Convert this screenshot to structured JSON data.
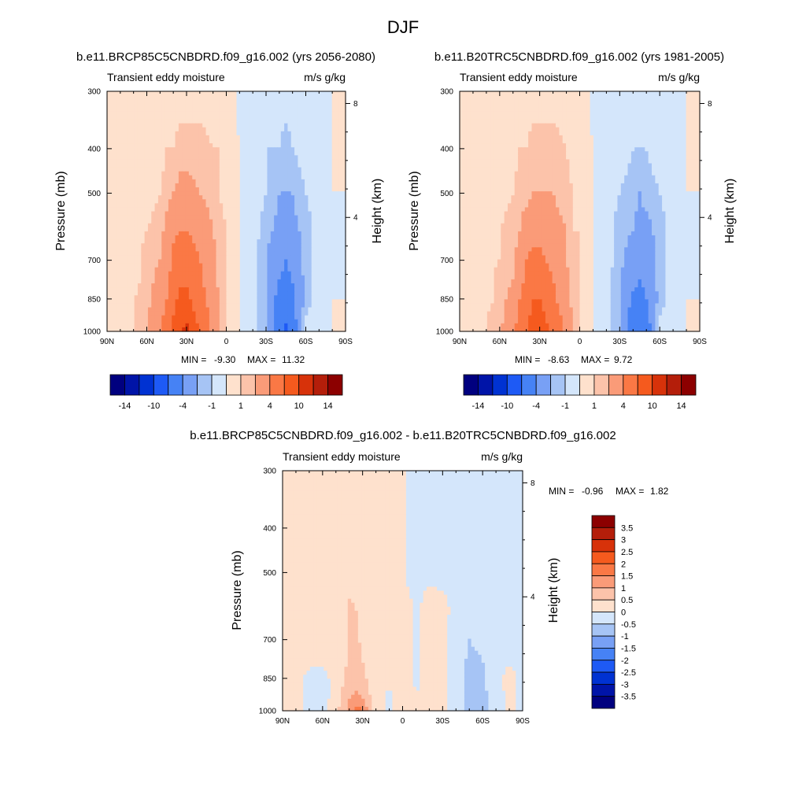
{
  "figure_title": "DJF",
  "chart_data": [
    {
      "type": "heatmap",
      "panel": "future",
      "title": "b.e11.BRCP85C5CNBDRD.f09_g16.002 (yrs 2056-2080)",
      "subtitle_left": "Transient eddy moisture",
      "subtitle_right": "m/s g/kg",
      "ylabel": "Pressure (mb)",
      "ylabel_right": "Height (km)",
      "x_ticks": [
        "90N",
        "60N",
        "30N",
        "0",
        "30S",
        "60S",
        "90S"
      ],
      "y_ticks": [
        "300",
        "400",
        "500",
        "700",
        "850",
        "1000"
      ],
      "y_ticks_right": [
        "8",
        "4"
      ],
      "stats": {
        "min_label": "MIN =",
        "min": "-9.30",
        "max_label": "MAX =",
        "max": "11.32"
      },
      "levels": [
        -14,
        -12,
        -10,
        -7,
        -4,
        -2,
        -1,
        0,
        1,
        2,
        4,
        7,
        10,
        12,
        14
      ],
      "level_labels": [
        "-14",
        "-10",
        "-4",
        "-1",
        "1",
        "4",
        "10",
        "14"
      ],
      "colorbar_orientation": "horizontal",
      "field": {
        "lats": [
          -90,
          -80,
          -70,
          -60,
          -50,
          -45,
          -40,
          -30,
          -20,
          -10,
          -5,
          0,
          5,
          10,
          20,
          30,
          35,
          40,
          45,
          50,
          60,
          70,
          80,
          90
        ],
        "pressures": [
          1000,
          925,
          850,
          775,
          700,
          600,
          500,
          400,
          300
        ],
        "values": [
          [
            0,
            0,
            0,
            -0.5,
            -6,
            -7.5,
            -6,
            -2,
            -0.5,
            0,
            0.5,
            1,
            2,
            3,
            7,
            11,
            10,
            8,
            6,
            4,
            2,
            1,
            0,
            0
          ],
          [
            0,
            0,
            -0.5,
            -1,
            -5,
            -6.5,
            -5.5,
            -2,
            -0.5,
            0,
            0.5,
            1,
            2,
            3,
            6,
            9,
            9,
            7,
            5,
            3,
            2,
            1,
            0,
            0
          ],
          [
            0,
            0,
            -0.5,
            -1.5,
            -4.5,
            -5.5,
            -5,
            -2,
            -0.5,
            0,
            0.5,
            1,
            2,
            3,
            5,
            8,
            8,
            6,
            4,
            3,
            1.5,
            1,
            0,
            0
          ],
          [
            0,
            -0.5,
            -0.5,
            -1.5,
            -4,
            -4.5,
            -4,
            -2,
            -0.5,
            0,
            0.5,
            1,
            1.5,
            2.5,
            4.5,
            6.5,
            6.5,
            5,
            3.5,
            2.5,
            1.5,
            0.5,
            0,
            0
          ],
          [
            0,
            -0.5,
            -0.5,
            -1.5,
            -3.5,
            -4,
            -3.5,
            -2,
            -0.5,
            0,
            0.5,
            1,
            1.5,
            2.5,
            4,
            5.5,
            5.5,
            4.5,
            3,
            2,
            1.5,
            0.5,
            0,
            0
          ],
          [
            0,
            -0.5,
            -0.5,
            -1.5,
            -2.5,
            -3,
            -2.5,
            -1.5,
            -0.5,
            0,
            0.5,
            1,
            1.5,
            2,
            3,
            4,
            4,
            3.5,
            2.5,
            1.5,
            1,
            0.5,
            0,
            0
          ],
          [
            0,
            0,
            -0.5,
            -1,
            -2,
            -2,
            -2,
            -1,
            -0.5,
            0,
            0.5,
            0.5,
            1,
            1.5,
            2,
            2.5,
            2.5,
            2,
            1.5,
            1,
            0.5,
            0.5,
            0,
            0
          ],
          [
            0,
            0,
            -0.5,
            -0.5,
            -1,
            -1.5,
            -1,
            -1,
            -0.5,
            0,
            0.5,
            0.5,
            1,
            1,
            1.5,
            1.5,
            1.5,
            1,
            1,
            0.5,
            0.5,
            0,
            0,
            0
          ],
          [
            0,
            0,
            0,
            -0.5,
            -0.5,
            -0.5,
            -0.5,
            -0.5,
            -0.5,
            -0.5,
            0.5,
            0.5,
            0.5,
            0.5,
            0.5,
            0.5,
            0.5,
            0.5,
            0.5,
            0.5,
            0.5,
            0.5,
            0,
            0
          ]
        ]
      }
    },
    {
      "type": "heatmap",
      "panel": "present",
      "title": "b.e11.B20TRC5CNBDRD.f09_g16.002 (yrs 1981-2005)",
      "subtitle_left": "Transient eddy moisture",
      "subtitle_right": "m/s g/kg",
      "ylabel": "Pressure (mb)",
      "ylabel_right": "Height (km)",
      "x_ticks": [
        "90N",
        "60N",
        "30N",
        "0",
        "30S",
        "60S",
        "90S"
      ],
      "y_ticks": [
        "300",
        "400",
        "500",
        "700",
        "850",
        "1000"
      ],
      "y_ticks_right": [
        "8",
        "4"
      ],
      "stats": {
        "min_label": "MIN =",
        "min": "-8.63",
        "max_label": "MAX =",
        "max": "9.72"
      },
      "levels": [
        -14,
        -12,
        -10,
        -7,
        -4,
        -2,
        -1,
        0,
        1,
        2,
        4,
        7,
        10,
        12,
        14
      ],
      "level_labels": [
        "-14",
        "-10",
        "-4",
        "-1",
        "1",
        "4",
        "10",
        "14"
      ],
      "colorbar_orientation": "horizontal",
      "field": {
        "lats": [
          -90,
          -80,
          -70,
          -60,
          -50,
          -45,
          -40,
          -30,
          -20,
          -10,
          -5,
          0,
          5,
          10,
          20,
          30,
          35,
          40,
          45,
          50,
          60,
          70,
          80,
          90
        ],
        "pressures": [
          1000,
          925,
          850,
          775,
          700,
          600,
          500,
          400,
          300
        ],
        "values": [
          [
            0,
            0,
            0,
            -0.5,
            -5.5,
            -7,
            -5.5,
            -2,
            -0.5,
            0,
            0.5,
            1,
            2,
            3,
            6,
            9.5,
            9,
            7,
            5,
            3.5,
            2,
            1,
            0,
            0
          ],
          [
            0,
            0,
            -0.5,
            -1,
            -5,
            -6,
            -5,
            -2,
            -0.5,
            0,
            0.5,
            1,
            2,
            3,
            5.5,
            8,
            8,
            6,
            4.5,
            3,
            1.5,
            1,
            0,
            0
          ],
          [
            0,
            0,
            -0.5,
            -1.5,
            -4,
            -5,
            -4.5,
            -2,
            -0.5,
            0,
            0.5,
            1,
            1.5,
            2.5,
            4.5,
            7,
            7,
            5.5,
            4,
            2.5,
            1.5,
            0.5,
            0,
            0
          ],
          [
            0,
            -0.5,
            -0.5,
            -1.5,
            -3.5,
            -4,
            -3.5,
            -2,
            -0.5,
            0,
            0.5,
            1,
            1.5,
            2.5,
            4,
            5.5,
            5.5,
            4.5,
            3,
            2,
            1.5,
            0.5,
            0,
            0
          ],
          [
            0,
            -0.5,
            -0.5,
            -1.5,
            -3,
            -3.5,
            -3,
            -1.5,
            -0.5,
            0,
            0.5,
            1,
            1.5,
            2,
            3.5,
            4.5,
            4.5,
            4,
            2.5,
            2,
            1,
            0.5,
            0,
            0
          ],
          [
            0,
            -0.5,
            -0.5,
            -1.5,
            -2.5,
            -2.5,
            -2,
            -1.5,
            -0.5,
            0,
            0.5,
            1,
            1,
            2,
            2.5,
            3.5,
            3.5,
            3,
            2,
            1.5,
            1,
            0.5,
            0,
            0
          ],
          [
            0,
            0,
            -0.5,
            -1,
            -1.5,
            -2,
            -1.5,
            -1,
            -0.5,
            0,
            0.5,
            0.5,
            1,
            1.5,
            2,
            2,
            2,
            1.5,
            1.5,
            1,
            0.5,
            0.5,
            0,
            0
          ],
          [
            0,
            0,
            -0.5,
            -0.5,
            -1,
            -1,
            -1,
            -0.5,
            -0.5,
            0,
            0.5,
            0.5,
            0.5,
            1,
            1.5,
            1.5,
            1.5,
            1,
            1,
            0.5,
            0.5,
            0,
            0,
            0
          ],
          [
            0,
            0,
            0,
            -0.5,
            -0.5,
            -0.5,
            -0.5,
            -0.5,
            -0.5,
            -0.5,
            0.5,
            0.5,
            0.5,
            0.5,
            0.5,
            0.5,
            0.5,
            0.5,
            0.5,
            0.5,
            0.5,
            0.5,
            0,
            0
          ]
        ]
      }
    },
    {
      "type": "heatmap",
      "panel": "difference",
      "title": "b.e11.BRCP85C5CNBDRD.f09_g16.002 - b.e11.B20TRC5CNBDRD.f09_g16.002",
      "subtitle_left": "Transient eddy moisture",
      "subtitle_right": "m/s g/kg",
      "ylabel": "Pressure (mb)",
      "ylabel_right": "Height (km)",
      "x_ticks": [
        "90N",
        "60N",
        "30N",
        "0",
        "30S",
        "60S",
        "90S"
      ],
      "y_ticks": [
        "300",
        "400",
        "500",
        "700",
        "850",
        "1000"
      ],
      "y_ticks_right": [
        "8",
        "4"
      ],
      "stats": {
        "min_label": "MIN =",
        "min": "-0.96",
        "max_label": "MAX =",
        "max": "1.82"
      },
      "levels": [
        -3.5,
        -3,
        -2.5,
        -2,
        -1.5,
        -1,
        -0.5,
        0,
        0.5,
        1,
        1.5,
        2,
        2.5,
        3,
        3.5
      ],
      "level_labels": [
        "3.5",
        "3",
        "2.5",
        "2",
        "1.5",
        "1",
        "0.5",
        "0",
        "-0.5",
        "-1",
        "-1.5",
        "-2",
        "-2.5",
        "-3",
        "-3.5"
      ],
      "colorbar_orientation": "vertical",
      "field": {
        "lats": [
          -90,
          -80,
          -70,
          -60,
          -50,
          -45,
          -40,
          -30,
          -20,
          -10,
          -5,
          0,
          5,
          10,
          20,
          30,
          35,
          40,
          45,
          50,
          60,
          70,
          80,
          90
        ],
        "pressures": [
          1000,
          925,
          850,
          775,
          700,
          600,
          500,
          400,
          300
        ],
        "values": [
          [
            -0.2,
            0.2,
            -0.3,
            -0.6,
            -0.7,
            -0.5,
            -0.3,
            0.1,
            0.2,
            0,
            0.2,
            0.1,
            0.1,
            -0.1,
            0.2,
            1.5,
            1.7,
            1.2,
            0.8,
            0.3,
            -0.2,
            -0.1,
            0.1,
            0.1
          ],
          [
            -0.2,
            0.2,
            -0.3,
            -0.6,
            -0.7,
            -0.5,
            -0.3,
            0.1,
            0.2,
            0,
            0.2,
            0.1,
            0.1,
            -0.1,
            0.2,
            0.9,
            1.1,
            0.9,
            0.6,
            0.2,
            -0.2,
            -0.1,
            0.1,
            0.1
          ],
          [
            -0.2,
            0.2,
            -0.2,
            -0.6,
            -0.6,
            -0.4,
            -0.2,
            0.1,
            0.2,
            -0.1,
            0.2,
            0.1,
            0.1,
            0.1,
            0.2,
            0.6,
            0.8,
            0.7,
            0.4,
            0.2,
            -0.2,
            -0.1,
            0.1,
            0.1
          ],
          [
            -0.1,
            -0.1,
            -0.2,
            -0.5,
            -0.6,
            -0.4,
            -0.2,
            0.1,
            0.2,
            -0.1,
            0.1,
            0.1,
            0.1,
            0.1,
            0.2,
            0.5,
            0.7,
            0.6,
            0.3,
            0.2,
            0.1,
            0.1,
            0.1,
            0.1
          ],
          [
            -0.1,
            -0.1,
            -0.2,
            -0.4,
            -0.5,
            -0.3,
            -0.2,
            0.1,
            0.2,
            -0.1,
            0.1,
            0.1,
            0.1,
            0.1,
            0.2,
            0.4,
            0.6,
            0.6,
            0.3,
            0.2,
            0.1,
            0.1,
            0.1,
            0.1
          ],
          [
            -0.1,
            -0.1,
            -0.1,
            -0.2,
            -0.2,
            -0.2,
            -0.1,
            0.1,
            0.2,
            -0.1,
            0.1,
            0.1,
            0.1,
            0.1,
            0.2,
            0.3,
            0.5,
            0.6,
            0.3,
            0.2,
            0.1,
            0.1,
            0.1,
            0.1
          ],
          [
            -0.1,
            -0.1,
            -0.1,
            -0.1,
            -0.1,
            -0.1,
            -0.1,
            -0.1,
            -0.1,
            -0.1,
            -0.1,
            0.1,
            0.1,
            0.1,
            0.2,
            0.2,
            0.2,
            0.2,
            0.2,
            0.1,
            0.1,
            0.1,
            0.1,
            0.1
          ],
          [
            -0.1,
            -0.1,
            -0.1,
            -0.1,
            -0.1,
            -0.1,
            -0.1,
            -0.1,
            -0.1,
            -0.1,
            -0.1,
            0.1,
            0.1,
            0.1,
            0.1,
            0.1,
            0.1,
            0.1,
            0.1,
            0.1,
            0.1,
            0.1,
            0.1,
            0.1
          ],
          [
            -0.1,
            -0.1,
            -0.1,
            -0.1,
            -0.1,
            -0.1,
            -0.1,
            -0.1,
            -0.1,
            -0.1,
            -0.1,
            0.1,
            0.1,
            0.1,
            0.1,
            0.1,
            0.1,
            0.1,
            0.1,
            0.1,
            0.1,
            0.1,
            0.1,
            0.1
          ]
        ]
      }
    }
  ],
  "palette": [
    "#00007f",
    "#0014a8",
    "#0032d2",
    "#1e5af5",
    "#4682f5",
    "#78a0f5",
    "#a6c4f5",
    "#d4e6fb",
    "#fee1cd",
    "#fcc3aa",
    "#fa9b78",
    "#fa7845",
    "#f55a1e",
    "#d7320a",
    "#b41e0a",
    "#8c0000"
  ]
}
